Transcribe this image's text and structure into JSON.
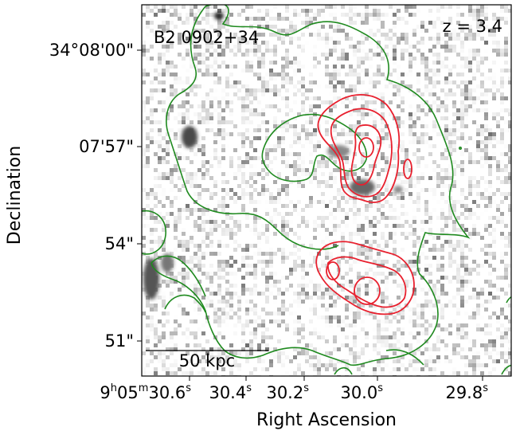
{
  "chart_data": {
    "type": "image",
    "title": "",
    "source_label": "B2 0902+34",
    "redshift_label": "z = 3.4",
    "xlabel": "Right Ascension",
    "ylabel": "Declination",
    "x_ticks": [
      {
        "value": "30.6s",
        "label_main": "9",
        "sup1": "h",
        "mid": "05",
        "sup2": "m",
        "tail": "30.6",
        "sup3": "s"
      },
      {
        "value": "30.4s",
        "label_main": "30.4",
        "sup1": "s"
      },
      {
        "value": "30.2s",
        "label_main": "30.2",
        "sup1": "s"
      },
      {
        "value": "30.0s",
        "label_main": "30.0",
        "sup1": "s"
      },
      {
        "value": "29.8s",
        "label_main": "29.8",
        "sup1": "s"
      }
    ],
    "y_ticks": [
      "34°08'00\"",
      "07'57\"",
      "54\"",
      "51\""
    ],
    "scalebar_label": "50 kpc",
    "contour_colors": {
      "green": "#1f8a1f",
      "red": "#e8202e"
    },
    "background": "grayscale optical image"
  }
}
